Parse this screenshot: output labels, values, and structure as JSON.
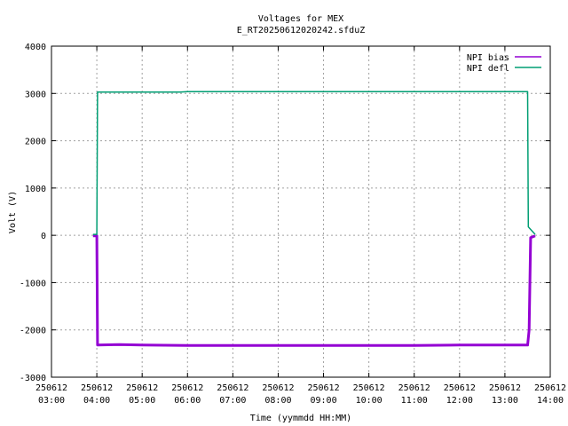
{
  "chart_data": {
    "type": "line",
    "title": "Voltages for MEX",
    "subtitle": "E_RT20250612020242.sfduZ",
    "xlabel": "Time (yymmdd HH:MM)",
    "ylabel": "Volt (V)",
    "xlim": [
      "250612 03:00",
      "250612 14:00"
    ],
    "ylim": [
      -3000,
      4000
    ],
    "grid": true,
    "legend_position": "top-right",
    "x_ticks": [
      {
        "date": "250612",
        "time": "03:00"
      },
      {
        "date": "250612",
        "time": "04:00"
      },
      {
        "date": "250612",
        "time": "05:00"
      },
      {
        "date": "250612",
        "time": "06:00"
      },
      {
        "date": "250612",
        "time": "07:00"
      },
      {
        "date": "250612",
        "time": "08:00"
      },
      {
        "date": "250612",
        "time": "09:00"
      },
      {
        "date": "250612",
        "time": "10:00"
      },
      {
        "date": "250612",
        "time": "11:00"
      },
      {
        "date": "250612",
        "time": "12:00"
      },
      {
        "date": "250612",
        "time": "13:00"
      },
      {
        "date": "250612",
        "time": "14:00"
      }
    ],
    "y_ticks": [
      "-3000",
      "-2000",
      "-1000",
      "0",
      "1000",
      "2000",
      "3000",
      "4000"
    ],
    "series": [
      {
        "name": "NPI bias",
        "color": "#9400d3",
        "points": [
          [
            "250612 03:55",
            -10
          ],
          [
            "250612 04:00",
            -10
          ],
          [
            "250612 04:01",
            -2320
          ],
          [
            "250612 04:30",
            -2310
          ],
          [
            "250612 05:00",
            -2320
          ],
          [
            "250612 06:00",
            -2330
          ],
          [
            "250612 07:00",
            -2330
          ],
          [
            "250612 08:00",
            -2330
          ],
          [
            "250612 09:00",
            -2330
          ],
          [
            "250612 10:00",
            -2330
          ],
          [
            "250612 11:00",
            -2330
          ],
          [
            "250612 12:00",
            -2320
          ],
          [
            "250612 13:00",
            -2320
          ],
          [
            "250612 13:30",
            -2320
          ],
          [
            "250612 13:32",
            -2000
          ],
          [
            "250612 13:34",
            -50
          ],
          [
            "250612 13:40",
            -10
          ]
        ]
      },
      {
        "name": "NPI defl",
        "color": "#009e73",
        "points": [
          [
            "250612 03:55",
            20
          ],
          [
            "250612 04:00",
            20
          ],
          [
            "250612 04:01",
            3030
          ],
          [
            "250612 05:00",
            3030
          ],
          [
            "250612 05:50",
            3030
          ],
          [
            "250612 06:00",
            3040
          ],
          [
            "250612 07:00",
            3040
          ],
          [
            "250612 08:00",
            3040
          ],
          [
            "250612 09:00",
            3040
          ],
          [
            "250612 10:00",
            3040
          ],
          [
            "250612 11:00",
            3040
          ],
          [
            "250612 12:00",
            3040
          ],
          [
            "250612 13:00",
            3040
          ],
          [
            "250612 13:30",
            3040
          ],
          [
            "250612 13:31",
            180
          ],
          [
            "250612 13:40",
            20
          ]
        ]
      }
    ]
  }
}
